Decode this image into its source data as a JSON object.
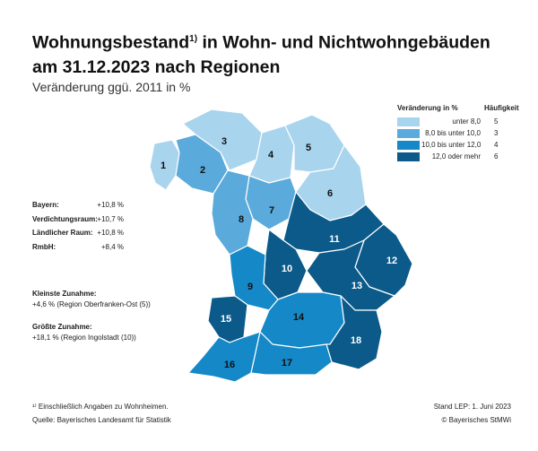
{
  "title_line1": "Wohnungsbestand",
  "title_sup": "1)",
  "title_line1_rest": " in Wohn- und Nichtwohngebäuden",
  "title_line2": "am 31.12.2023 nach Regionen",
  "subtitle": "Veränderung ggü. 2011 in %",
  "legend": {
    "header_left": "Veränderung in %",
    "header_right": "Häufigkeit",
    "classes": [
      {
        "label": "unter   8,0",
        "count": "5",
        "color": "#a8d4ee"
      },
      {
        "label": "8,0  bis unter  10,0",
        "count": "3",
        "color": "#5aaadb"
      },
      {
        "label": "10,0  bis unter  12,0",
        "count": "4",
        "color": "#1588c8"
      },
      {
        "label": "12,0  oder mehr",
        "count": "6",
        "color": "#0b5a8a"
      }
    ]
  },
  "stats": [
    {
      "label": "Bayern:",
      "value": "+10,8 %"
    },
    {
      "label": "Verdichtungsraum:",
      "value": "+10,7 %"
    },
    {
      "label": "Ländlicher Raum:",
      "value": "+10,8 %"
    },
    {
      "label": "RmbH:",
      "value": "+8,4 %"
    }
  ],
  "smallest": {
    "heading": "Kleinste Zunahme:",
    "text": "+4,6 %  (Region Oberfranken-Ost (5))"
  },
  "largest": {
    "heading": "Größte Zunahme:",
    "text": "+18,1 %  (Region Ingolstadt (10))"
  },
  "footnote": "¹⁾  Einschließlich Angaben zu Wohnheimen.",
  "source": "Quelle: Bayerisches Landesamt für Statistik",
  "stand": "Stand LEP: 1. Juni 2023",
  "copyright": "© Bayerisches StMWi",
  "regions": [
    {
      "id": "1",
      "class": 0
    },
    {
      "id": "2",
      "class": 1
    },
    {
      "id": "3",
      "class": 0
    },
    {
      "id": "4",
      "class": 0
    },
    {
      "id": "5",
      "class": 0
    },
    {
      "id": "6",
      "class": 0
    },
    {
      "id": "7",
      "class": 1
    },
    {
      "id": "8",
      "class": 1
    },
    {
      "id": "9",
      "class": 2
    },
    {
      "id": "10",
      "class": 3
    },
    {
      "id": "11",
      "class": 3
    },
    {
      "id": "12",
      "class": 3
    },
    {
      "id": "13",
      "class": 3
    },
    {
      "id": "14",
      "class": 2
    },
    {
      "id": "15",
      "class": 3
    },
    {
      "id": "16",
      "class": 2
    },
    {
      "id": "17",
      "class": 2
    },
    {
      "id": "18",
      "class": 3
    }
  ]
}
